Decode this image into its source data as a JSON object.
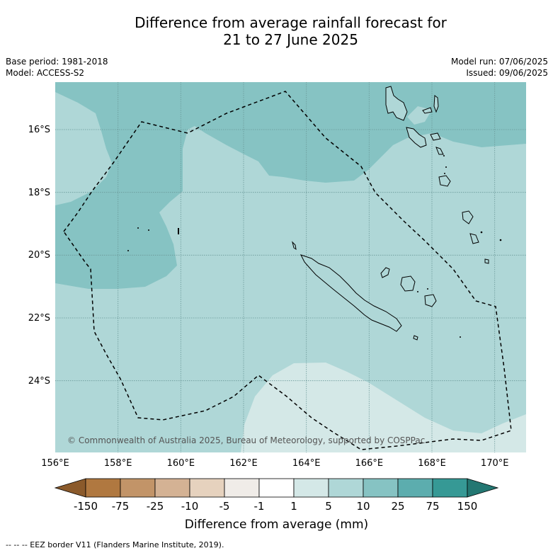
{
  "title_line1": "Difference from average rainfall forecast for",
  "title_line2": "21 to 27 June 2025",
  "base_period": "Base period: 1981-2018",
  "model": "Model: ACCESS-S2",
  "model_run": "Model run: 07/06/2025",
  "issued": "Issued: 09/06/2025",
  "lon_labels": [
    "156°E",
    "158°E",
    "160°E",
    "162°E",
    "164°E",
    "166°E",
    "168°E",
    "170°E"
  ],
  "lat_labels": [
    "16°S",
    "18°S",
    "20°S",
    "22°S",
    "24°S"
  ],
  "copyright": "© Commonwealth of Australia 2025, Bureau of Meteorology, supported by COSPPac",
  "colorbar": {
    "labels": [
      "-150",
      "-75",
      "-25",
      "-10",
      "-5",
      "-1",
      "1",
      "5",
      "10",
      "25",
      "75",
      "150"
    ],
    "colors": [
      "#8b5a2b",
      "#b07840",
      "#c29468",
      "#d4b294",
      "#e6d2be",
      "#f0ece8",
      "#ffffff",
      "#d4e8e7",
      "#afd7d7",
      "#86c3c3",
      "#5cadae",
      "#369995",
      "#237772"
    ],
    "title": "Difference from average (mm)"
  },
  "footnote": "--  --  -- EEZ border V11 (Flanders Marine Institute, 2019)."
}
